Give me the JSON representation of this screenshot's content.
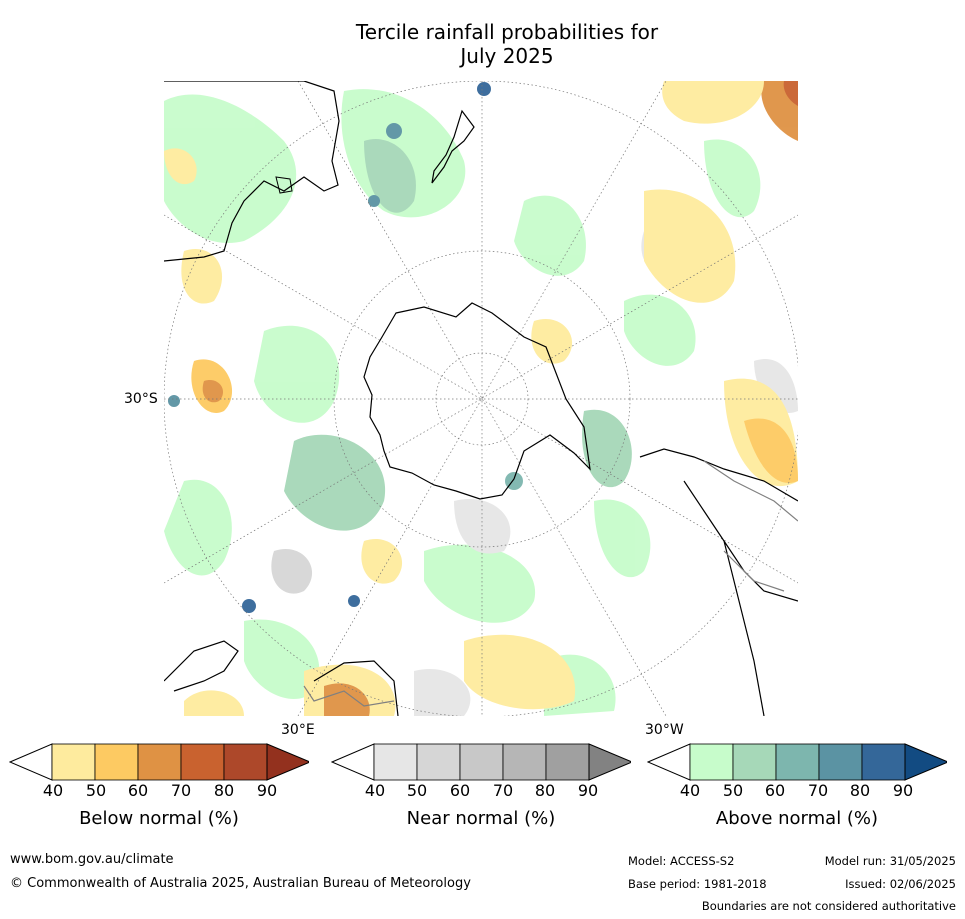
{
  "title_line1": "Tercile rainfall probabilities for",
  "title_line2": "July 2025",
  "map": {
    "projection": "south-polar-stereographic",
    "lat_labels": [
      "30°S"
    ],
    "lon_labels": [
      "30°E",
      "30°W"
    ],
    "land_color": "#000000",
    "graticule_color": "#888888"
  },
  "legends": {
    "below": {
      "title": "Below normal (%)",
      "ticks": [
        "40",
        "50",
        "60",
        "70",
        "80",
        "90"
      ],
      "colors": [
        "#ffffff",
        "#feeb9e",
        "#fdca62",
        "#df9244",
        "#c9622f",
        "#ad482a",
        "#93311e"
      ]
    },
    "near": {
      "title": "Near normal (%)",
      "ticks": [
        "40",
        "50",
        "60",
        "70",
        "80",
        "90"
      ],
      "colors": [
        "#ffffff",
        "#e6e6e6",
        "#d6d6d6",
        "#c8c8c8",
        "#b6b6b6",
        "#a0a0a0",
        "#828282"
      ]
    },
    "above": {
      "title": "Above normal (%)",
      "ticks": [
        "40",
        "50",
        "60",
        "70",
        "80",
        "90"
      ],
      "colors": [
        "#ffffff",
        "#c7fccb",
        "#a6d8b8",
        "#7db6ae",
        "#5b93a3",
        "#346799",
        "#124b82"
      ]
    }
  },
  "footer": {
    "url": "www.bom.gov.au/climate",
    "copyright": "© Commonwealth of Australia 2025, Australian Bureau of Meteorology",
    "model": "Model: ACCESS-S2",
    "base_period": "Base period: 1981-2018",
    "model_run": "Model run: 31/05/2025",
    "issued": "Issued: 02/06/2025",
    "disclaimer": "Boundaries are not considered authoritative"
  }
}
